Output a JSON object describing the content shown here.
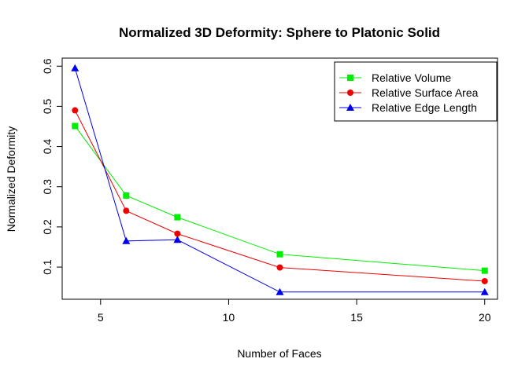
{
  "chart_data": {
    "type": "line",
    "title": "Normalized 3D Deformity: Sphere to Platonic Solid",
    "xlabel": "Number of Faces",
    "ylabel": "Normalized Deformity",
    "x": [
      4,
      6,
      8,
      12,
      20
    ],
    "xlim": [
      3.5,
      20.5
    ],
    "ylim": [
      0.02,
      0.62
    ],
    "xticks": [
      5,
      10,
      15,
      20
    ],
    "yticks": [
      0.1,
      0.2,
      0.3,
      0.4,
      0.5,
      0.6
    ],
    "grid": false,
    "legend_position": "top-right",
    "series": [
      {
        "name": "Relative Volume",
        "color": "#00ee00",
        "marker": "square",
        "values": [
          0.451,
          0.278,
          0.224,
          0.132,
          0.091
        ]
      },
      {
        "name": "Relative Surface Area",
        "color": "#ee0000",
        "marker": "circle",
        "values": [
          0.49,
          0.24,
          0.183,
          0.099,
          0.065
        ]
      },
      {
        "name": "Relative Edge Length",
        "color": "#0000ee",
        "marker": "triangle",
        "values": [
          0.595,
          0.165,
          0.168,
          0.038,
          0.038
        ]
      }
    ]
  }
}
